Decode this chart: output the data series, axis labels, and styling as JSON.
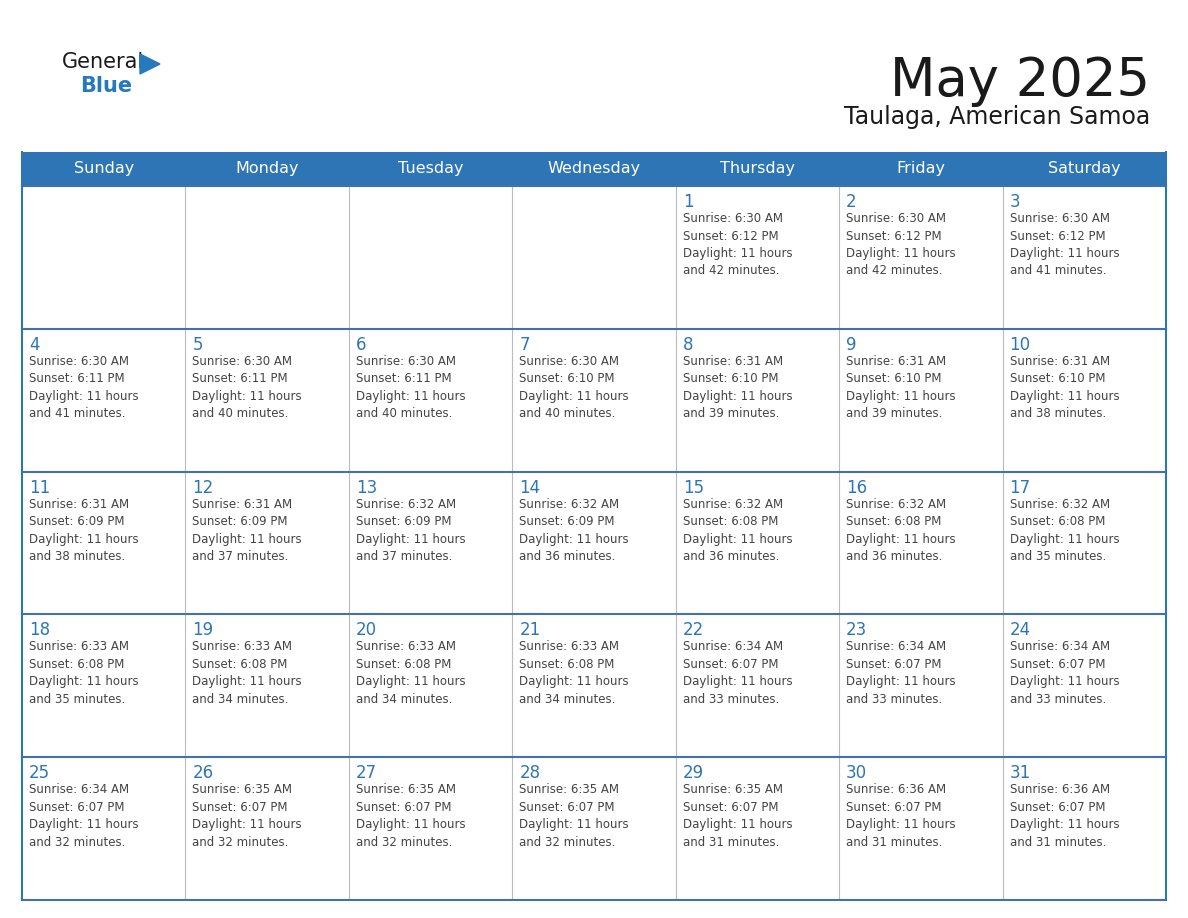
{
  "title": "May 2025",
  "subtitle": "Taulaga, American Samoa",
  "days_of_week": [
    "Sunday",
    "Monday",
    "Tuesday",
    "Wednesday",
    "Thursday",
    "Friday",
    "Saturday"
  ],
  "header_bg": "#2E75B6",
  "header_text": "#FFFFFF",
  "border_color": "#2E75B6",
  "row_border_color": "#4472A8",
  "col_border_color": "#BBBBBB",
  "day_num_color": "#2E75B6",
  "text_color": "#444444",
  "title_color": "#1A1A1A",
  "logo_general_color": "#1A1A1A",
  "logo_blue_color": "#2779BD",
  "weeks": [
    [
      {
        "day": null,
        "info": ""
      },
      {
        "day": null,
        "info": ""
      },
      {
        "day": null,
        "info": ""
      },
      {
        "day": null,
        "info": ""
      },
      {
        "day": 1,
        "info": "Sunrise: 6:30 AM\nSunset: 6:12 PM\nDaylight: 11 hours\nand 42 minutes."
      },
      {
        "day": 2,
        "info": "Sunrise: 6:30 AM\nSunset: 6:12 PM\nDaylight: 11 hours\nand 42 minutes."
      },
      {
        "day": 3,
        "info": "Sunrise: 6:30 AM\nSunset: 6:12 PM\nDaylight: 11 hours\nand 41 minutes."
      }
    ],
    [
      {
        "day": 4,
        "info": "Sunrise: 6:30 AM\nSunset: 6:11 PM\nDaylight: 11 hours\nand 41 minutes."
      },
      {
        "day": 5,
        "info": "Sunrise: 6:30 AM\nSunset: 6:11 PM\nDaylight: 11 hours\nand 40 minutes."
      },
      {
        "day": 6,
        "info": "Sunrise: 6:30 AM\nSunset: 6:11 PM\nDaylight: 11 hours\nand 40 minutes."
      },
      {
        "day": 7,
        "info": "Sunrise: 6:30 AM\nSunset: 6:10 PM\nDaylight: 11 hours\nand 40 minutes."
      },
      {
        "day": 8,
        "info": "Sunrise: 6:31 AM\nSunset: 6:10 PM\nDaylight: 11 hours\nand 39 minutes."
      },
      {
        "day": 9,
        "info": "Sunrise: 6:31 AM\nSunset: 6:10 PM\nDaylight: 11 hours\nand 39 minutes."
      },
      {
        "day": 10,
        "info": "Sunrise: 6:31 AM\nSunset: 6:10 PM\nDaylight: 11 hours\nand 38 minutes."
      }
    ],
    [
      {
        "day": 11,
        "info": "Sunrise: 6:31 AM\nSunset: 6:09 PM\nDaylight: 11 hours\nand 38 minutes."
      },
      {
        "day": 12,
        "info": "Sunrise: 6:31 AM\nSunset: 6:09 PM\nDaylight: 11 hours\nand 37 minutes."
      },
      {
        "day": 13,
        "info": "Sunrise: 6:32 AM\nSunset: 6:09 PM\nDaylight: 11 hours\nand 37 minutes."
      },
      {
        "day": 14,
        "info": "Sunrise: 6:32 AM\nSunset: 6:09 PM\nDaylight: 11 hours\nand 36 minutes."
      },
      {
        "day": 15,
        "info": "Sunrise: 6:32 AM\nSunset: 6:08 PM\nDaylight: 11 hours\nand 36 minutes."
      },
      {
        "day": 16,
        "info": "Sunrise: 6:32 AM\nSunset: 6:08 PM\nDaylight: 11 hours\nand 36 minutes."
      },
      {
        "day": 17,
        "info": "Sunrise: 6:32 AM\nSunset: 6:08 PM\nDaylight: 11 hours\nand 35 minutes."
      }
    ],
    [
      {
        "day": 18,
        "info": "Sunrise: 6:33 AM\nSunset: 6:08 PM\nDaylight: 11 hours\nand 35 minutes."
      },
      {
        "day": 19,
        "info": "Sunrise: 6:33 AM\nSunset: 6:08 PM\nDaylight: 11 hours\nand 34 minutes."
      },
      {
        "day": 20,
        "info": "Sunrise: 6:33 AM\nSunset: 6:08 PM\nDaylight: 11 hours\nand 34 minutes."
      },
      {
        "day": 21,
        "info": "Sunrise: 6:33 AM\nSunset: 6:08 PM\nDaylight: 11 hours\nand 34 minutes."
      },
      {
        "day": 22,
        "info": "Sunrise: 6:34 AM\nSunset: 6:07 PM\nDaylight: 11 hours\nand 33 minutes."
      },
      {
        "day": 23,
        "info": "Sunrise: 6:34 AM\nSunset: 6:07 PM\nDaylight: 11 hours\nand 33 minutes."
      },
      {
        "day": 24,
        "info": "Sunrise: 6:34 AM\nSunset: 6:07 PM\nDaylight: 11 hours\nand 33 minutes."
      }
    ],
    [
      {
        "day": 25,
        "info": "Sunrise: 6:34 AM\nSunset: 6:07 PM\nDaylight: 11 hours\nand 32 minutes."
      },
      {
        "day": 26,
        "info": "Sunrise: 6:35 AM\nSunset: 6:07 PM\nDaylight: 11 hours\nand 32 minutes."
      },
      {
        "day": 27,
        "info": "Sunrise: 6:35 AM\nSunset: 6:07 PM\nDaylight: 11 hours\nand 32 minutes."
      },
      {
        "day": 28,
        "info": "Sunrise: 6:35 AM\nSunset: 6:07 PM\nDaylight: 11 hours\nand 32 minutes."
      },
      {
        "day": 29,
        "info": "Sunrise: 6:35 AM\nSunset: 6:07 PM\nDaylight: 11 hours\nand 31 minutes."
      },
      {
        "day": 30,
        "info": "Sunrise: 6:36 AM\nSunset: 6:07 PM\nDaylight: 11 hours\nand 31 minutes."
      },
      {
        "day": 31,
        "info": "Sunrise: 6:36 AM\nSunset: 6:07 PM\nDaylight: 11 hours\nand 31 minutes."
      }
    ]
  ]
}
